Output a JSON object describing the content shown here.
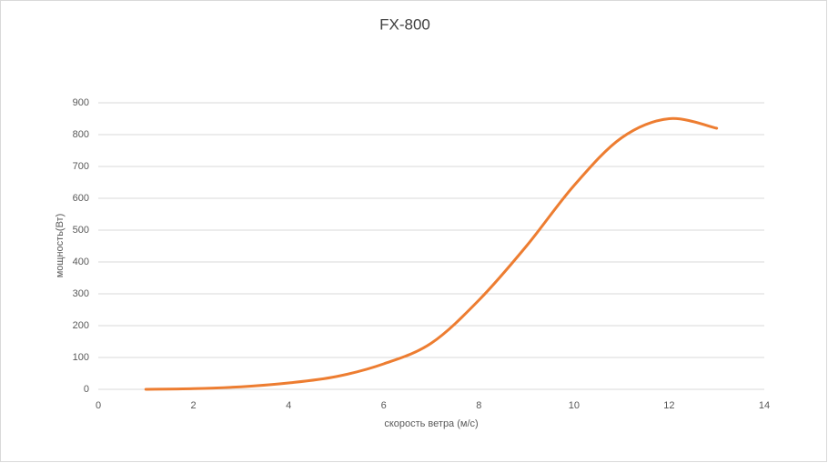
{
  "chart_data": {
    "type": "line",
    "title": "FX-800",
    "x_label": "скорость ветра (м/с)",
    "y_label": "мощность(Вт)",
    "x": [
      1,
      2,
      3,
      4,
      5,
      6,
      7,
      8,
      9,
      10,
      11,
      12,
      13
    ],
    "series": [
      {
        "name": "FX-800",
        "color": "#ed7d31",
        "values": [
          0,
          2,
          8,
          20,
          40,
          80,
          145,
          280,
          450,
          640,
          790,
          850,
          820
        ]
      }
    ],
    "xlim": [
      0,
      14
    ],
    "xticks": [
      0,
      2,
      4,
      6,
      8,
      10,
      12,
      14
    ],
    "ylim": [
      0,
      900
    ],
    "yticks": [
      0,
      100,
      200,
      300,
      400,
      500,
      600,
      700,
      800,
      900
    ],
    "grid": true,
    "smooth": true
  }
}
